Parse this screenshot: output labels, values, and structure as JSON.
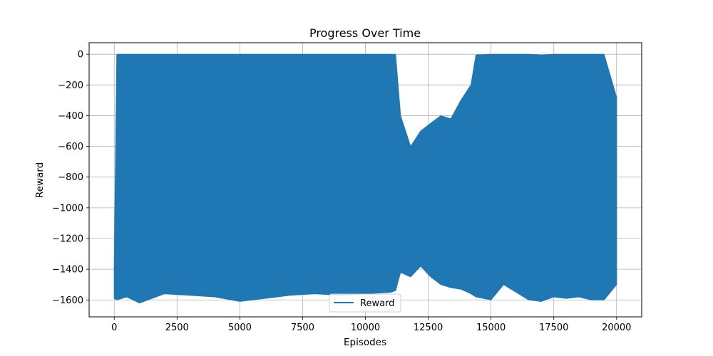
{
  "chart_data": {
    "type": "area",
    "title": "Progress Over Time",
    "xlabel": "Episodes",
    "ylabel": "Reward",
    "xlim": [
      -1000,
      21000
    ],
    "ylim": [
      -1710,
      75
    ],
    "xticks": [
      0,
      2500,
      5000,
      7500,
      10000,
      12500,
      15000,
      17500,
      20000
    ],
    "xtick_labels": [
      "0",
      "2500",
      "5000",
      "7500",
      "10000",
      "12500",
      "15000",
      "17500",
      "20000"
    ],
    "yticks": [
      0,
      -200,
      -400,
      -600,
      -800,
      -1000,
      -1200,
      -1400,
      -1600
    ],
    "ytick_labels": [
      "0",
      "−200",
      "−400",
      "−600",
      "−800",
      "−1000",
      "−1200",
      "−1400",
      "−1600"
    ],
    "grid": true,
    "legend": {
      "position": "lower center",
      "entries": [
        "Reward"
      ]
    },
    "series": [
      {
        "name": "Reward",
        "color": "#1f77b4",
        "x": [
          0,
          100,
          500,
          1000,
          2000,
          3000,
          4000,
          5000,
          6000,
          7000,
          8000,
          9000,
          10000,
          11000,
          11200,
          11400,
          11800,
          12200,
          12600,
          13000,
          13400,
          13800,
          14200,
          14400,
          15000,
          15500,
          16000,
          16500,
          17000,
          17500,
          18000,
          18500,
          19000,
          19500,
          20000
        ],
        "max": [
          -1380,
          0,
          0,
          0,
          0,
          0,
          0,
          0,
          0,
          0,
          0,
          0,
          0,
          0,
          0,
          -400,
          -600,
          -500,
          -450,
          -400,
          -420,
          -300,
          -200,
          -5,
          0,
          0,
          0,
          0,
          -5,
          0,
          0,
          0,
          0,
          0,
          -280
        ],
        "min": [
          -1590,
          -1600,
          -1580,
          -1620,
          -1560,
          -1570,
          -1580,
          -1610,
          -1590,
          -1570,
          -1560,
          -1570,
          -1560,
          -1550,
          -1540,
          -1420,
          -1450,
          -1380,
          -1450,
          -1500,
          -1520,
          -1530,
          -1560,
          -1580,
          -1600,
          -1500,
          -1550,
          -1600,
          -1610,
          -1580,
          -1590,
          -1580,
          -1600,
          -1600,
          -1500
        ]
      }
    ]
  }
}
